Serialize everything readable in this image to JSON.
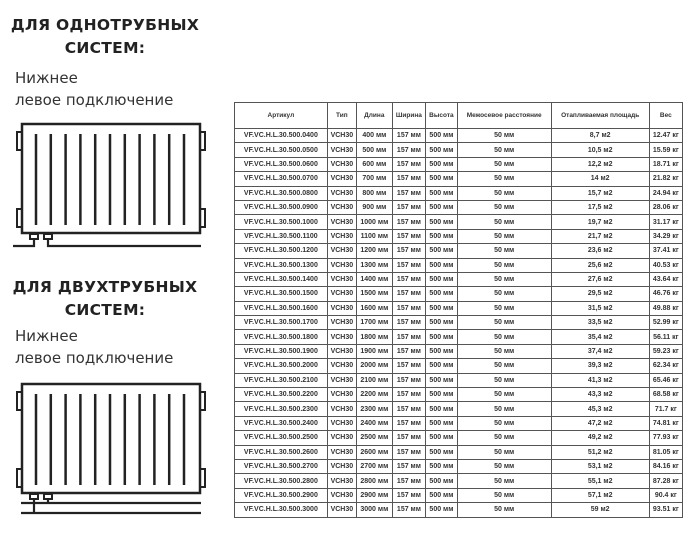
{
  "section1": {
    "title_line1": "ДЛЯ ОДНОТРУБНЫХ",
    "title_line2": "СИСТЕМ:",
    "subtitle_line1": "Нижнее",
    "subtitle_line2": "левое подключение"
  },
  "section2": {
    "title_line1": "ДЛЯ ДВУХТРУБНЫХ",
    "title_line2": "СИСТЕМ:",
    "subtitle_line1": "Нижнее",
    "subtitle_line2": "левое подключение"
  },
  "table": {
    "headers": [
      "Артикул",
      "Тип",
      "Длина",
      "Ширина",
      "Высота",
      "Межосевое расстояние",
      "Отапливаемая площадь",
      "Вес"
    ],
    "rows": [
      [
        "VF.VC.H.L.30.500.0400",
        "VCH30",
        "400 мм",
        "157 мм",
        "500 мм",
        "50 мм",
        "8,7 м2",
        "12.47 кг"
      ],
      [
        "VF.VC.H.L.30.500.0500",
        "VCH30",
        "500 мм",
        "157 мм",
        "500 мм",
        "50 мм",
        "10,5 м2",
        "15.59 кг"
      ],
      [
        "VF.VC.H.L.30.500.0600",
        "VCH30",
        "600 мм",
        "157 мм",
        "500 мм",
        "50 мм",
        "12,2 м2",
        "18.71 кг"
      ],
      [
        "VF.VC.H.L.30.500.0700",
        "VCH30",
        "700 мм",
        "157 мм",
        "500 мм",
        "50 мм",
        "14 м2",
        "21.82 кг"
      ],
      [
        "VF.VC.H.L.30.500.0800",
        "VCH30",
        "800 мм",
        "157 мм",
        "500 мм",
        "50 мм",
        "15,7 м2",
        "24.94 кг"
      ],
      [
        "VF.VC.H.L.30.500.0900",
        "VCH30",
        "900 мм",
        "157 мм",
        "500 мм",
        "50 мм",
        "17,5 м2",
        "28.06 кг"
      ],
      [
        "VF.VC.H.L.30.500.1000",
        "VCH30",
        "1000 мм",
        "157 мм",
        "500 мм",
        "50 мм",
        "19,7 м2",
        "31.17 кг"
      ],
      [
        "VF.VC.H.L.30.500.1100",
        "VCH30",
        "1100 мм",
        "157 мм",
        "500 мм",
        "50 мм",
        "21,7 м2",
        "34.29 кг"
      ],
      [
        "VF.VC.H.L.30.500.1200",
        "VCH30",
        "1200 мм",
        "157 мм",
        "500 мм",
        "50 мм",
        "23,6 м2",
        "37.41 кг"
      ],
      [
        "VF.VC.H.L.30.500.1300",
        "VCH30",
        "1300 мм",
        "157 мм",
        "500 мм",
        "50 мм",
        "25,6 м2",
        "40.53 кг"
      ],
      [
        "VF.VC.H.L.30.500.1400",
        "VCH30",
        "1400 мм",
        "157 мм",
        "500 мм",
        "50 мм",
        "27,6 м2",
        "43.64 кг"
      ],
      [
        "VF.VC.H.L.30.500.1500",
        "VCH30",
        "1500 мм",
        "157 мм",
        "500 мм",
        "50 мм",
        "29,5 м2",
        "46.76 кг"
      ],
      [
        "VF.VC.H.L.30.500.1600",
        "VCH30",
        "1600 мм",
        "157 мм",
        "500 мм",
        "50 мм",
        "31,5 м2",
        "49.88 кг"
      ],
      [
        "VF.VC.H.L.30.500.1700",
        "VCH30",
        "1700 мм",
        "157 мм",
        "500 мм",
        "50 мм",
        "33,5 м2",
        "52.99 кг"
      ],
      [
        "VF.VC.H.L.30.500.1800",
        "VCH30",
        "1800 мм",
        "157 мм",
        "500 мм",
        "50 мм",
        "35,4 м2",
        "56.11 кг"
      ],
      [
        "VF.VC.H.L.30.500.1900",
        "VCH30",
        "1900 мм",
        "157 мм",
        "500 мм",
        "50 мм",
        "37,4 м2",
        "59.23 кг"
      ],
      [
        "VF.VC.H.L.30.500.2000",
        "VCH30",
        "2000 мм",
        "157 мм",
        "500 мм",
        "50 мм",
        "39,3 м2",
        "62.34 кг"
      ],
      [
        "VF.VC.H.L.30.500.2100",
        "VCH30",
        "2100 мм",
        "157 мм",
        "500 мм",
        "50 мм",
        "41,3 м2",
        "65.46 кг"
      ],
      [
        "VF.VC.H.L.30.500.2200",
        "VCH30",
        "2200 мм",
        "157 мм",
        "500 мм",
        "50 мм",
        "43,3 м2",
        "68.58 кг"
      ],
      [
        "VF.VC.H.L.30.500.2300",
        "VCH30",
        "2300 мм",
        "157 мм",
        "500 мм",
        "50 мм",
        "45,3 м2",
        "71.7 кг"
      ],
      [
        "VF.VC.H.L.30.500.2400",
        "VCH30",
        "2400 мм",
        "157 мм",
        "500 мм",
        "50 мм",
        "47,2 м2",
        "74.81 кг"
      ],
      [
        "VF.VC.H.L.30.500.2500",
        "VCH30",
        "2500 мм",
        "157 мм",
        "500 мм",
        "50 мм",
        "49,2 м2",
        "77.93 кг"
      ],
      [
        "VF.VC.H.L.30.500.2600",
        "VCH30",
        "2600 мм",
        "157 мм",
        "500 мм",
        "50 мм",
        "51,2 м2",
        "81.05 кг"
      ],
      [
        "VF.VC.H.L.30.500.2700",
        "VCH30",
        "2700 мм",
        "157 мм",
        "500 мм",
        "50 мм",
        "53,1 м2",
        "84.16 кг"
      ],
      [
        "VF.VC.H.L.30.500.2800",
        "VCH30",
        "2800 мм",
        "157 мм",
        "500 мм",
        "50 мм",
        "55,1 м2",
        "87.28 кг"
      ],
      [
        "VF.VC.H.L.30.500.2900",
        "VCH30",
        "2900 мм",
        "157 мм",
        "500 мм",
        "50 мм",
        "57,1 м2",
        "90.4 кг"
      ],
      [
        "VF.VC.H.L.30.500.3000",
        "VCH30",
        "3000 мм",
        "157 мм",
        "500 мм",
        "50 мм",
        "59 м2",
        "93.51 кг"
      ]
    ]
  }
}
